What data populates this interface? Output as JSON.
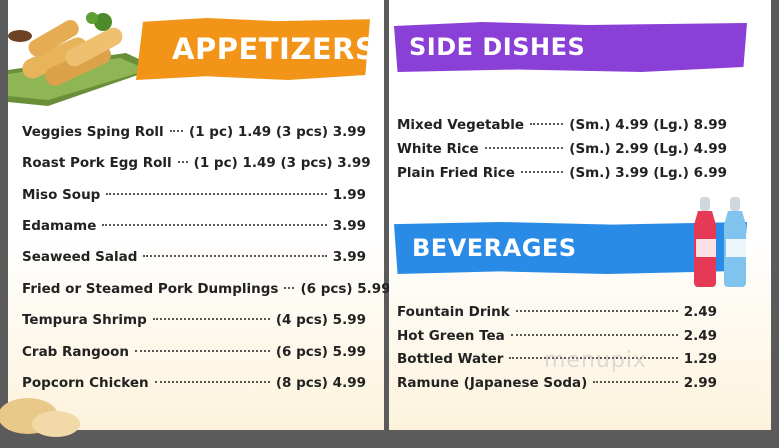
{
  "appetizers": {
    "title": "APPETIZERS",
    "items": [
      {
        "name": "Veggies Sping  Roll",
        "price": "(1 pc) 1.49 (3 pcs) 3.99"
      },
      {
        "name": "Roast Pork Egg Roll",
        "price": "(1 pc) 1.49 (3 pcs) 3.99"
      },
      {
        "name": "Miso Soup",
        "price": "1.99"
      },
      {
        "name": "Edamame",
        "price": "3.99"
      },
      {
        "name": "Seaweed Salad",
        "price": "3.99"
      },
      {
        "name": "Fried or Steamed Pork Dumplings",
        "price": "(6 pcs) 5.99"
      },
      {
        "name": "Tempura Shrimp",
        "price": "(4 pcs) 5.99"
      },
      {
        "name": "Crab Rangoon",
        "price": "(6 pcs) 5.99"
      },
      {
        "name": "Popcorn Chicken",
        "price": "(8 pcs) 4.99"
      }
    ]
  },
  "side_dishes": {
    "title": "SIDE DISHES",
    "items": [
      {
        "name": "Mixed Vegetable",
        "price": "(Sm.) 4.99  (Lg.) 8.99"
      },
      {
        "name": "White Rice",
        "price": "(Sm.) 2.99  (Lg.) 4.99"
      },
      {
        "name": "Plain Fried Rice",
        "price": "(Sm.) 3.99  (Lg.) 6.99"
      }
    ]
  },
  "beverages": {
    "title": "BEVERAGES",
    "items": [
      {
        "name": "Fountain Drink",
        "price": "2.49"
      },
      {
        "name": "Hot Green Tea",
        "price": "2.49"
      },
      {
        "name": "Bottled Water",
        "price": "1.29"
      },
      {
        "name": "Ramune (Japanese Soda)",
        "price": "2.99"
      }
    ]
  },
  "watermark": "menupix",
  "colors": {
    "appetizers": "#f29418",
    "side_dishes": "#8a3fd6",
    "beverages": "#2a8be6"
  },
  "images": [
    "spring-rolls-photo",
    "ramune-bottles-photo"
  ]
}
